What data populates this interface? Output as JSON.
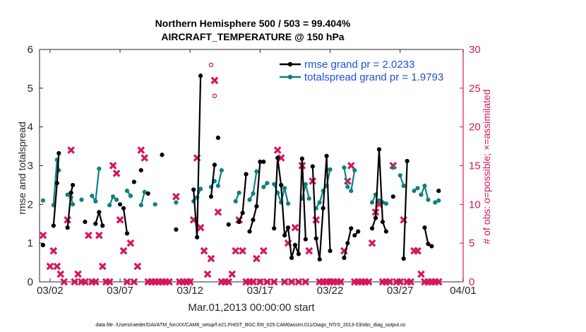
{
  "chart_data": {
    "type": "line",
    "title": "Northern Hemisphere 500 / 503 = 99.404%",
    "subtitle": "AIRCRAFT_TEMPERATURE @ 150 hPa",
    "xlabel": "Mar.01,2013 00:00:00 start",
    "ylabel": "rmse and totalspread",
    "ylabel_right": "# of obs: o=possible; ×=assimilated",
    "xlim": [
      0.75,
      31
    ],
    "ylim": [
      0,
      6
    ],
    "ylim_right": [
      0,
      30
    ],
    "x_ticks": [
      {
        "pos": 1.5,
        "label": "03/02"
      },
      {
        "pos": 6.5,
        "label": "03/07"
      },
      {
        "pos": 11.5,
        "label": "03/12"
      },
      {
        "pos": 16.5,
        "label": "03/17"
      },
      {
        "pos": 21.5,
        "label": "03/22"
      },
      {
        "pos": 26.5,
        "label": "03/27"
      },
      {
        "pos": 31.0,
        "label": "04/01"
      }
    ],
    "y_ticks": [
      "0",
      "1",
      "2",
      "3",
      "4",
      "5",
      "6"
    ],
    "y_ticks_right": [
      "0",
      "5",
      "10",
      "15",
      "20",
      "25",
      "30"
    ],
    "colors": {
      "rmse": "#000000",
      "spread": "#0f8080",
      "obs": "#d5175e",
      "legend_text": "#1f4fd8"
    },
    "legend": [
      {
        "label": "rmse grand pr = 2.0233",
        "series": "rmse"
      },
      {
        "label": "totalspread grand pr = 1.9793",
        "series": "spread"
      }
    ],
    "series": [
      {
        "name": "rmse",
        "segments": [
          [
            [
              1.0,
              0.95
            ]
          ],
          [
            [
              1.75,
              1.45
            ],
            [
              2.0,
              2.55
            ],
            [
              2.125,
              3.32
            ]
          ],
          [
            [
              2.75,
              1.4
            ],
            [
              3.0,
              2.3
            ],
            [
              3.125,
              2.5
            ]
          ],
          [
            [
              4.0,
              1.55
            ]
          ],
          [
            [
              4.75,
              1.5
            ],
            [
              5.0,
              1.8
            ],
            [
              5.25,
              1.45
            ]
          ],
          [
            [
              6.5,
              2.0
            ]
          ],
          [
            [
              6.75,
              1.9
            ],
            [
              7.0,
              1.25
            ]
          ],
          [
            [
              7.5,
              2.58
            ]
          ],
          [
            [
              8.0,
              2.88
            ]
          ],
          [
            [
              8.5,
              2.28
            ]
          ],
          [
            [
              9.5,
              3.28
            ]
          ],
          [
            [
              10.5,
              1.35
            ]
          ],
          [
            [
              11.75,
              2.38
            ],
            [
              12.0,
              1.15
            ],
            [
              12.25,
              5.32
            ]
          ],
          [
            [
              13.0,
              2.2
            ],
            [
              13.25,
              3.02
            ]
          ],
          [
            [
              13.5,
              3.72
            ]
          ],
          [
            [
              14.25,
              1.48
            ]
          ],
          [
            [
              15.0,
              1.55
            ],
            [
              15.25,
              1.78
            ],
            [
              15.5,
              2.78
            ]
          ],
          [
            [
              15.75,
              1.3
            ],
            [
              16.0,
              1.6
            ],
            [
              16.25,
              1.95
            ],
            [
              16.5,
              3.1
            ],
            [
              16.75,
              3.1
            ]
          ],
          [
            [
              17.5,
              1.38
            ],
            [
              17.75,
              3.2
            ],
            [
              18.0,
              2.5
            ],
            [
              18.25,
              1.2
            ],
            [
              18.5,
              1.4
            ],
            [
              18.75,
              0.62
            ],
            [
              19.0,
              0.95
            ],
            [
              19.25,
              0.72
            ],
            [
              19.5,
              3.18
            ],
            [
              19.75,
              1.1
            ]
          ],
          [
            [
              20.25,
              2.98
            ],
            [
              20.5,
              1.12
            ],
            [
              20.75,
              0.58
            ],
            [
              21.0,
              1.9
            ],
            [
              21.25,
              3.25
            ],
            [
              21.5,
              0.8
            ]
          ],
          [
            [
              22.5,
              0.62
            ],
            [
              22.75,
              1.0
            ],
            [
              23.0,
              1.38
            ]
          ],
          [
            [
              23.25,
              1.2
            ],
            [
              23.5,
              1.3
            ]
          ],
          [
            [
              24.5,
              1.38
            ],
            [
              24.75,
              1.65
            ],
            [
              25.0,
              3.42
            ],
            [
              25.25,
              1.55
            ],
            [
              25.5,
              1.3
            ]
          ],
          [
            [
              26.0,
              2.2
            ]
          ],
          [
            [
              26.75,
              0.6
            ],
            [
              27.0,
              3.12
            ]
          ],
          [
            [
              28.25,
              1.4
            ],
            [
              28.5,
              0.98
            ],
            [
              28.75,
              0.92
            ]
          ],
          [
            [
              29.25,
              2.35
            ]
          ]
        ]
      },
      {
        "name": "totalspread",
        "segments": [
          [
            [
              1.0,
              2.1
            ]
          ],
          [
            [
              1.75,
              1.98
            ],
            [
              2.0,
              3.15
            ],
            [
              2.125,
              2.88
            ]
          ],
          [
            [
              2.75,
              2.25
            ],
            [
              3.0,
              2.18
            ],
            [
              3.125,
              2.0
            ]
          ],
          [
            [
              3.75,
              2.12
            ]
          ],
          [
            [
              4.5,
              2.22
            ],
            [
              4.75,
              2.08
            ],
            [
              5.0,
              2.92
            ]
          ],
          [
            [
              5.75,
              1.98
            ],
            [
              6.0,
              2.2
            ],
            [
              6.25,
              2.12
            ]
          ],
          [
            [
              7.0,
              2.35
            ],
            [
              7.25,
              2.22
            ]
          ],
          [
            [
              8.0,
              1.98
            ],
            [
              8.25,
              2.32
            ]
          ],
          [
            [
              9.0,
              2.0
            ]
          ],
          [
            [
              10.5,
              2.05
            ]
          ],
          [
            [
              11.75,
              2.08
            ],
            [
              12.0,
              2.18
            ],
            [
              12.25,
              2.4
            ]
          ],
          [
            [
              13.0,
              2.45
            ],
            [
              13.25,
              2.6
            ]
          ],
          [
            [
              13.5,
              2.48
            ],
            [
              13.75,
              2.88
            ]
          ],
          [
            [
              14.75,
              2.08
            ],
            [
              15.0,
              2.3
            ]
          ],
          [
            [
              15.75,
              2.12
            ],
            [
              16.0,
              2.28
            ],
            [
              16.25,
              2.85
            ]
          ],
          [
            [
              16.75,
              2.45
            ],
            [
              17.0,
              2.55
            ]
          ],
          [
            [
              17.5,
              2.52
            ],
            [
              17.75,
              2.3
            ],
            [
              18.0,
              2.05
            ],
            [
              18.25,
              2.42
            ],
            [
              18.5,
              2.02
            ]
          ],
          [
            [
              19.5,
              2.15
            ],
            [
              19.75,
              2.52
            ],
            [
              20.0,
              2.15
            ]
          ],
          [
            [
              20.5,
              1.9
            ],
            [
              20.75,
              2.05
            ],
            [
              21.0,
              2.35
            ],
            [
              21.25,
              2.48
            ],
            [
              21.5,
              2.9
            ]
          ],
          [
            [
              22.5,
              2.95
            ],
            [
              22.75,
              2.45
            ]
          ],
          [
            [
              23.0,
              2.35
            ],
            [
              23.25,
              2.88
            ]
          ],
          [
            [
              24.5,
              2.05
            ],
            [
              24.75,
              2.25
            ]
          ],
          [
            [
              25.0,
              2.1
            ],
            [
              25.25,
              2.05
            ],
            [
              25.5,
              2.02
            ]
          ],
          [
            [
              26.0,
              2.95
            ]
          ],
          [
            [
              26.5,
              2.75
            ],
            [
              26.75,
              2.48
            ]
          ],
          [
            [
              27.5,
              2.35
            ],
            [
              27.75,
              2.42
            ]
          ],
          [
            [
              28.0,
              2.25
            ],
            [
              28.25,
              2.48
            ],
            [
              28.5,
              2.12
            ]
          ],
          [
            [
              29.0,
              2.05
            ],
            [
              29.25,
              2.1
            ]
          ]
        ]
      }
    ],
    "obs_assimilated": [
      [
        1,
        6
      ],
      [
        1.5,
        2
      ],
      [
        1.75,
        4
      ],
      [
        2,
        2
      ],
      [
        2.25,
        1
      ],
      [
        2.5,
        0
      ],
      [
        2.75,
        8
      ],
      [
        3,
        17
      ],
      [
        3.25,
        0
      ],
      [
        3.5,
        1
      ],
      [
        3.75,
        0
      ],
      [
        4,
        0
      ],
      [
        4.25,
        6
      ],
      [
        4.5,
        0
      ],
      [
        4.75,
        0
      ],
      [
        5,
        6
      ],
      [
        5.25,
        2
      ],
      [
        5.5,
        0
      ],
      [
        5.75,
        0
      ],
      [
        6,
        15
      ],
      [
        6.25,
        14
      ],
      [
        6.5,
        8
      ],
      [
        6.75,
        4
      ],
      [
        7,
        0
      ],
      [
        7.25,
        5
      ],
      [
        7.5,
        0
      ],
      [
        7.75,
        2
      ],
      [
        8,
        17
      ],
      [
        8.25,
        16
      ],
      [
        8.5,
        0
      ],
      [
        8.75,
        0
      ],
      [
        9,
        0
      ],
      [
        9.25,
        0
      ],
      [
        9.5,
        0
      ],
      [
        9.75,
        0
      ],
      [
        10,
        0
      ],
      [
        10.5,
        11
      ],
      [
        10.75,
        0
      ],
      [
        11,
        0
      ],
      [
        11.25,
        0
      ],
      [
        11.5,
        0
      ],
      [
        11.75,
        8
      ],
      [
        12,
        16
      ],
      [
        12.25,
        7
      ],
      [
        12.5,
        4
      ],
      [
        12.75,
        1
      ],
      [
        13,
        3
      ],
      [
        13.25,
        26
      ],
      [
        13.5,
        9
      ],
      [
        13.75,
        0
      ],
      [
        14,
        0
      ],
      [
        14.25,
        0
      ],
      [
        14.5,
        1
      ],
      [
        14.75,
        4
      ],
      [
        15,
        8
      ],
      [
        15.25,
        4
      ],
      [
        15.5,
        0
      ],
      [
        15.75,
        0
      ],
      [
        16,
        0
      ],
      [
        16.25,
        3
      ],
      [
        16.5,
        0
      ],
      [
        16.75,
        4
      ],
      [
        17,
        0
      ],
      [
        17.5,
        0
      ],
      [
        17.75,
        17
      ],
      [
        18,
        16
      ],
      [
        18.25,
        0
      ],
      [
        18.5,
        5
      ],
      [
        18.75,
        0
      ],
      [
        19,
        7
      ],
      [
        19.25,
        0
      ],
      [
        19.5,
        15
      ],
      [
        19.75,
        0
      ],
      [
        20,
        4
      ],
      [
        20.25,
        13
      ],
      [
        20.5,
        8
      ],
      [
        20.75,
        0
      ],
      [
        21,
        0
      ],
      [
        21.25,
        0
      ],
      [
        21.5,
        0
      ],
      [
        21.75,
        0
      ],
      [
        22,
        0
      ],
      [
        22.25,
        0
      ],
      [
        22.5,
        4
      ],
      [
        22.75,
        13
      ],
      [
        23,
        15
      ],
      [
        23.25,
        0
      ],
      [
        23.5,
        0
      ],
      [
        23.75,
        0
      ],
      [
        24,
        0
      ],
      [
        24.25,
        0
      ],
      [
        24.5,
        5
      ],
      [
        24.75,
        9
      ],
      [
        25,
        10
      ],
      [
        25.25,
        0
      ],
      [
        25.5,
        0
      ],
      [
        25.75,
        0
      ],
      [
        26,
        15
      ],
      [
        26.25,
        0
      ],
      [
        26.5,
        0
      ],
      [
        26.75,
        8
      ],
      [
        27,
        0
      ],
      [
        27.25,
        0
      ],
      [
        27.5,
        4
      ],
      [
        27.75,
        4
      ],
      [
        28,
        1
      ],
      [
        28.25,
        0
      ],
      [
        28.5,
        0
      ],
      [
        28.75,
        0
      ],
      [
        29,
        0
      ],
      [
        29.25,
        0
      ]
    ],
    "obs_possible": [
      [
        13.0,
        28
      ],
      [
        13.25,
        24
      ]
    ]
  },
  "footer": "data file: /Users/raeder/DAI/ATM_forcXX/CAM6_setup/f.e21.FHIST_BGC.f09_025.CAM6assim.011/Diags_NTrS_2013-03/obs_diag_output.nc"
}
